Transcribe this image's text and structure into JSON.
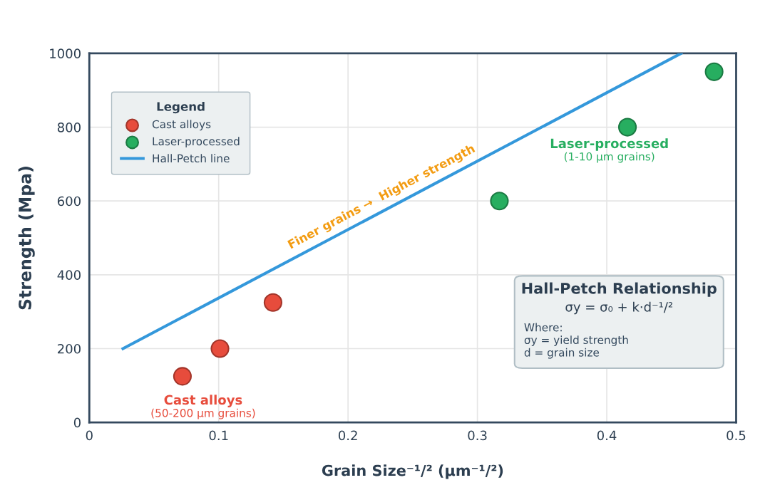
{
  "chart_data": {
    "type": "scatter",
    "xlabel": "Grain Size⁻¹/² (μm⁻¹/²)",
    "ylabel": "Strength (Mpa)",
    "xlim": [
      0,
      0.5
    ],
    "xticks": [
      0,
      0.1,
      0.2,
      0.3,
      0.4,
      0.5
    ],
    "ylim": [
      0,
      1000
    ],
    "yticks": [
      0,
      200,
      400,
      600,
      800,
      1000
    ],
    "grid": true,
    "legend": "top left",
    "legend_title": "Legend",
    "series": [
      {
        "name": "Cast alloys",
        "color": "#e74c3c",
        "marker": "circle",
        "x": [
          0.072,
          0.101,
          0.142
        ],
        "values": [
          125,
          200,
          325
        ]
      },
      {
        "name": "Laser-processed",
        "color": "#27ae60",
        "marker": "circle",
        "x": [
          0.317,
          0.416,
          0.483
        ],
        "values": [
          600,
          800,
          950
        ]
      },
      {
        "name": "Hall-Petch line",
        "type": "line",
        "color": "#3498db",
        "x": [
          0.026,
          0.4575
        ],
        "values": [
          200,
          1000
        ]
      }
    ],
    "annotations": [
      "Cast alloys",
      "(50-200 μm grains)",
      "Laser-processed",
      "(1-10 μm grains)",
      "Finer grains →  Higher strength",
      "Hall-Petch Relationship",
      "σy = σ₀ + k·d⁻¹/²",
      "Where:",
      "σy = yield strength",
      "d = grain size"
    ]
  }
}
